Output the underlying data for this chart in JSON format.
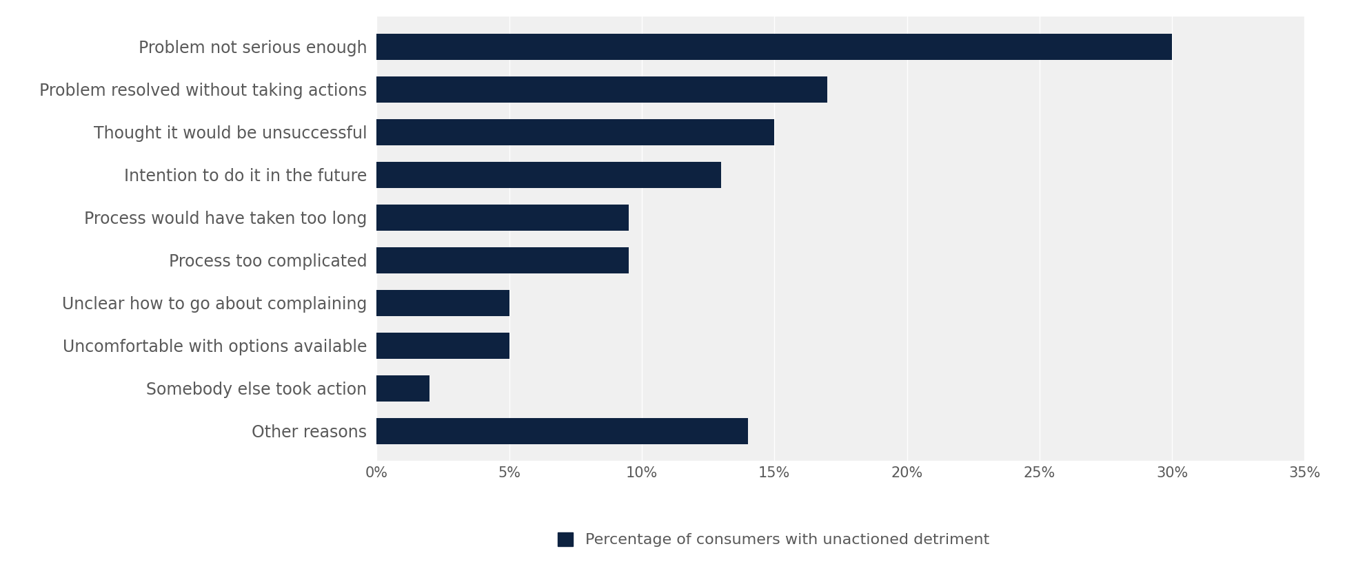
{
  "categories": [
    "Problem not serious enough",
    "Problem resolved without taking actions",
    "Thought it would be unsuccessful",
    "Intention to do it in the future",
    "Process would have taken too long",
    "Process too complicated",
    "Unclear how to go about complaining",
    "Uncomfortable with options available",
    "Somebody else took action",
    "Other reasons"
  ],
  "values": [
    30,
    17,
    15,
    13,
    9.5,
    9.5,
    5,
    5,
    2,
    14
  ],
  "bar_color": "#0d2240",
  "legend_label": "Percentage of consumers with unactioned detriment",
  "xlim": [
    0,
    35
  ],
  "xticks": [
    0,
    5,
    10,
    15,
    20,
    25,
    30,
    35
  ],
  "xtick_labels": [
    "0%",
    "5%",
    "10%",
    "15%",
    "20%",
    "25%",
    "30%",
    "35%"
  ],
  "background_color": "#ffffff",
  "plot_bg_color": "#f0f0f0",
  "grid_color": "#ffffff",
  "tick_label_color": "#595959",
  "label_fontsize": 17,
  "tick_fontsize": 15,
  "legend_fontsize": 16
}
